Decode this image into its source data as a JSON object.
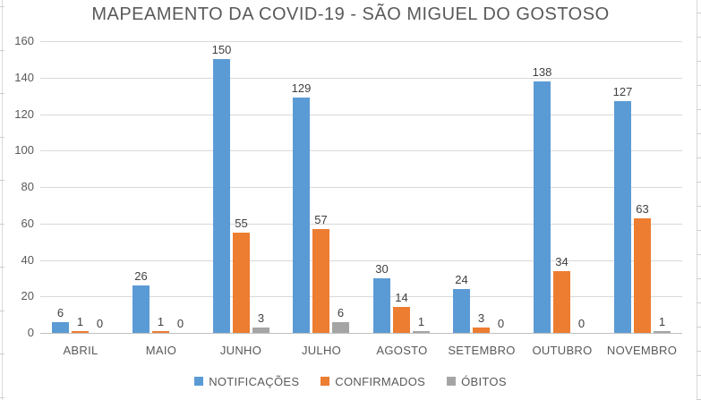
{
  "chart_data": {
    "type": "bar",
    "title": "MAPEAMENTO DA COVID-19 - SÃO MIGUEL DO GOSTOSO",
    "categories": [
      "ABRIL",
      "MAIO",
      "JUNHO",
      "JULHO",
      "AGOSTO",
      "SETEMBRO",
      "OUTUBRO",
      "NOVEMBRO"
    ],
    "series": [
      {
        "name": "NOTIFICAÇÕES",
        "slug": "notificacoes",
        "color": "#5B9BD5",
        "values": [
          6,
          26,
          150,
          129,
          30,
          24,
          138,
          127
        ]
      },
      {
        "name": "CONFIRMADOS",
        "slug": "confirmados",
        "color": "#ED7D31",
        "values": [
          1,
          1,
          55,
          57,
          14,
          3,
          34,
          63
        ]
      },
      {
        "name": "ÓBITOS",
        "slug": "obitos",
        "color": "#A5A5A5",
        "values": [
          0,
          0,
          3,
          6,
          1,
          0,
          0,
          1
        ]
      }
    ],
    "ylim": [
      0,
      160
    ],
    "yticks": [
      0,
      20,
      40,
      60,
      80,
      100,
      120,
      140,
      160
    ],
    "grid": "horizontal",
    "legend_position": "bottom",
    "data_labels": true
  },
  "colors": {
    "title_text": "#595959",
    "axis_text": "#595959",
    "value_label_text": "#404040",
    "gridline": "#D9D9D9",
    "axis_line": "#C0C0C0",
    "edge_border": "#D9D9D9",
    "edge_tick": "#CFCFCF",
    "background": "#FFFFFF"
  }
}
